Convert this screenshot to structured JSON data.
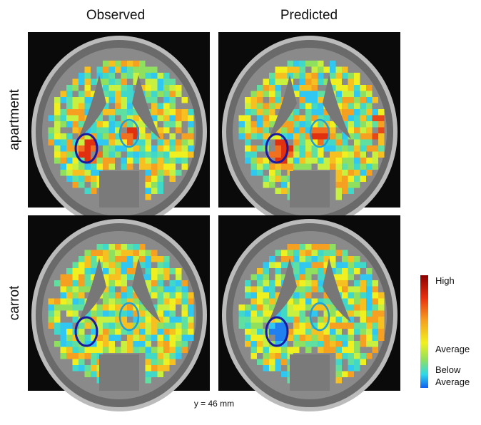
{
  "columns": [
    "Observed",
    "Predicted"
  ],
  "rows": [
    "apartment",
    "carrot"
  ],
  "legend": {
    "high": "High",
    "average": "Average",
    "below_average": [
      "Below",
      "Average"
    ]
  },
  "caption": "y = 46 mm"
}
